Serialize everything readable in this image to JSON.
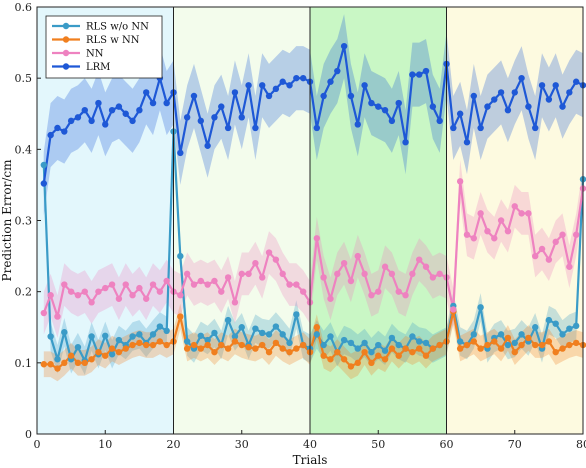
{
  "chart_data": {
    "type": "line",
    "title": "",
    "xlabel": "Trials",
    "ylabel": "Prediction Error/cm",
    "xlim": [
      0,
      80
    ],
    "ylim": [
      0,
      0.6
    ],
    "xticks": [
      0,
      10,
      20,
      30,
      40,
      50,
      60,
      70,
      80
    ],
    "yticks": [
      0,
      0.1,
      0.2,
      0.3,
      0.4,
      0.5,
      0.6
    ],
    "xtick_labels": [
      "0",
      "10",
      "20",
      "30",
      "40",
      "50",
      "60",
      "70",
      "80"
    ],
    "ytick_labels": [
      "0",
      "0.1",
      "0.2",
      "0.3",
      "0.4",
      "0.5",
      "0.6"
    ],
    "grid": false,
    "legend_position": "top-left",
    "phase_boundaries": [
      20,
      40,
      60
    ],
    "phase_regions": [
      {
        "x": [
          0,
          20
        ],
        "color": "#e3f7fc"
      },
      {
        "x": [
          20,
          40
        ],
        "color": "#f3fcec"
      },
      {
        "x": [
          40,
          60
        ],
        "color": "#c9f7c5"
      },
      {
        "x": [
          60,
          80
        ],
        "color": "#fdfae0"
      }
    ],
    "x": [
      1,
      2,
      3,
      4,
      5,
      6,
      7,
      8,
      9,
      10,
      11,
      12,
      13,
      14,
      15,
      16,
      17,
      18,
      19,
      20,
      21,
      22,
      23,
      24,
      25,
      26,
      27,
      28,
      29,
      30,
      31,
      32,
      33,
      34,
      35,
      36,
      37,
      38,
      39,
      40,
      41,
      42,
      43,
      44,
      45,
      46,
      47,
      48,
      49,
      50,
      51,
      52,
      53,
      54,
      55,
      56,
      57,
      58,
      59,
      60,
      61,
      62,
      63,
      64,
      65,
      66,
      67,
      68,
      69,
      70,
      71,
      72,
      73,
      74,
      75,
      76,
      77,
      78,
      79,
      80
    ],
    "series": [
      {
        "name": "RLS w/o NN",
        "color": "#3a9bc7",
        "values": [
          0.378,
          0.137,
          0.105,
          0.143,
          0.105,
          0.122,
          0.103,
          0.137,
          0.112,
          0.138,
          0.112,
          0.132,
          0.125,
          0.137,
          0.14,
          0.128,
          0.14,
          0.151,
          0.145,
          0.425,
          0.25,
          0.13,
          0.12,
          0.138,
          0.132,
          0.142,
          0.125,
          0.16,
          0.137,
          0.15,
          0.125,
          0.148,
          0.142,
          0.14,
          0.151,
          0.14,
          0.128,
          0.168,
          0.125,
          0.12,
          0.14,
          0.125,
          0.137,
          0.115,
          0.132,
          0.128,
          0.12,
          0.128,
          0.115,
          0.125,
          0.117,
          0.135,
          0.125,
          0.12,
          0.137,
          0.13,
          0.128,
          0.12,
          0.125,
          0.13,
          0.18,
          0.13,
          0.125,
          0.14,
          0.178,
          0.12,
          0.135,
          0.14,
          0.125,
          0.128,
          0.14,
          0.13,
          0.15,
          0.12,
          0.16,
          0.155,
          0.14,
          0.148,
          0.152,
          0.358
        ],
        "band": 0.02
      },
      {
        "name": "RLS w NN",
        "color": "#f07f1f",
        "values": [
          0.098,
          0.098,
          0.092,
          0.1,
          0.11,
          0.1,
          0.1,
          0.105,
          0.115,
          0.11,
          0.12,
          0.115,
          0.12,
          0.125,
          0.128,
          0.125,
          0.125,
          0.13,
          0.125,
          0.13,
          0.165,
          0.12,
          0.125,
          0.12,
          0.125,
          0.115,
          0.125,
          0.12,
          0.13,
          0.125,
          0.122,
          0.12,
          0.125,
          0.115,
          0.128,
          0.12,
          0.115,
          0.12,
          0.125,
          0.115,
          0.15,
          0.11,
          0.105,
          0.115,
          0.105,
          0.095,
          0.1,
          0.115,
          0.1,
          0.11,
          0.105,
          0.12,
          0.11,
          0.12,
          0.115,
          0.12,
          0.11,
          0.12,
          0.125,
          0.13,
          0.172,
          0.12,
          0.125,
          0.13,
          0.12,
          0.125,
          0.13,
          0.12,
          0.135,
          0.115,
          0.125,
          0.135,
          0.125,
          0.125,
          0.13,
          0.115,
          0.12,
          0.125,
          0.128,
          0.125
        ],
        "band": 0.018
      },
      {
        "name": "NN",
        "color": "#ee82c0",
        "values": [
          0.17,
          0.195,
          0.165,
          0.21,
          0.2,
          0.195,
          0.2,
          0.185,
          0.2,
          0.205,
          0.21,
          0.19,
          0.21,
          0.195,
          0.205,
          0.19,
          0.21,
          0.2,
          0.215,
          0.2,
          0.195,
          0.225,
          0.21,
          0.215,
          0.21,
          0.215,
          0.2,
          0.22,
          0.185,
          0.225,
          0.225,
          0.24,
          0.22,
          0.255,
          0.245,
          0.225,
          0.21,
          0.21,
          0.2,
          0.185,
          0.275,
          0.22,
          0.19,
          0.225,
          0.24,
          0.215,
          0.25,
          0.225,
          0.195,
          0.2,
          0.235,
          0.225,
          0.2,
          0.195,
          0.225,
          0.245,
          0.235,
          0.22,
          0.225,
          0.22,
          0.175,
          0.355,
          0.28,
          0.275,
          0.31,
          0.285,
          0.275,
          0.3,
          0.285,
          0.32,
          0.31,
          0.31,
          0.25,
          0.26,
          0.245,
          0.27,
          0.28,
          0.235,
          0.28,
          0.345
        ],
        "band": 0.03
      },
      {
        "name": "LRM",
        "color": "#1e58d6",
        "values": [
          0.352,
          0.42,
          0.43,
          0.425,
          0.44,
          0.445,
          0.455,
          0.44,
          0.465,
          0.435,
          0.455,
          0.46,
          0.45,
          0.44,
          0.455,
          0.48,
          0.465,
          0.5,
          0.465,
          0.48,
          0.395,
          0.445,
          0.475,
          0.44,
          0.405,
          0.445,
          0.46,
          0.43,
          0.48,
          0.445,
          0.49,
          0.43,
          0.49,
          0.475,
          0.485,
          0.495,
          0.49,
          0.5,
          0.5,
          0.495,
          0.43,
          0.475,
          0.495,
          0.51,
          0.545,
          0.475,
          0.435,
          0.49,
          0.465,
          0.46,
          0.455,
          0.44,
          0.465,
          0.41,
          0.505,
          0.505,
          0.51,
          0.46,
          0.44,
          0.52,
          0.43,
          0.45,
          0.41,
          0.475,
          0.43,
          0.46,
          0.47,
          0.48,
          0.455,
          0.48,
          0.5,
          0.46,
          0.43,
          0.49,
          0.47,
          0.49,
          0.46,
          0.48,
          0.495,
          0.49
        ],
        "band": 0.045
      }
    ]
  }
}
